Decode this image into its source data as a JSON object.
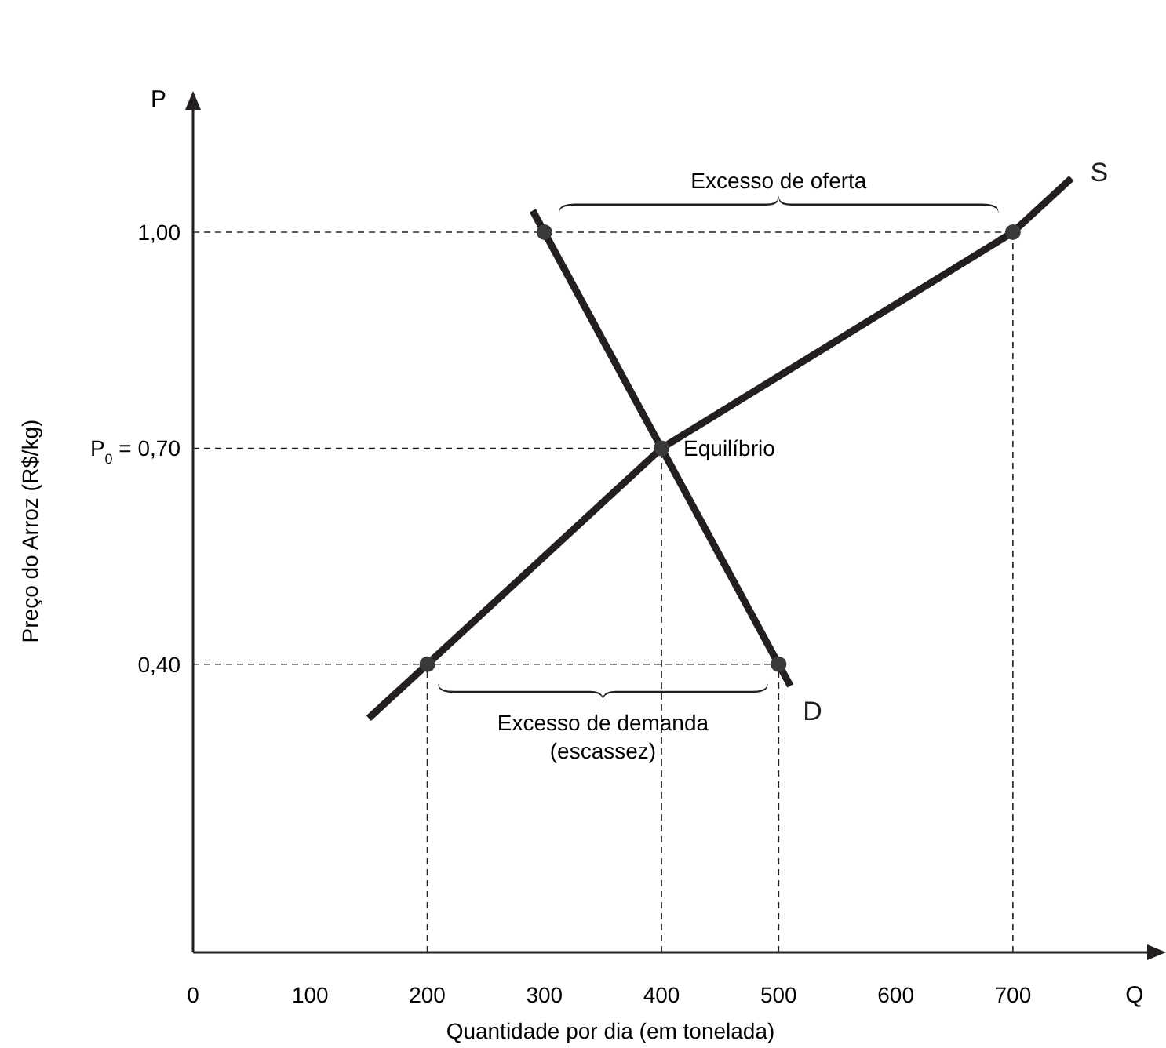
{
  "chart_data": {
    "type": "line",
    "xlabel": "Quantidade por dia (em tonelada)",
    "ylabel": "Preço do Arroz (R$/kg)",
    "xlim": [
      0,
      820
    ],
    "ylim": [
      0,
      1.17
    ],
    "xticks": [
      0,
      100,
      200,
      300,
      400,
      500,
      600,
      700
    ],
    "yticks": [
      {
        "value": 0.4,
        "label": "0,40"
      },
      {
        "value": 0.7,
        "label": "P$_{0}$ = 0,70"
      },
      {
        "value": 1,
        "label": "1,00"
      }
    ],
    "series": [
      {
        "name": "S",
        "color": "#231f20",
        "x": [
          150,
          200,
          400,
          700,
          750
        ],
        "values": [
          0.325,
          0.4,
          0.7,
          1,
          1.075
        ]
      },
      {
        "name": "D",
        "color": "#231f20",
        "x": [
          290,
          300,
          400,
          500,
          510
        ],
        "values": [
          1.03,
          1,
          0.7,
          0.4,
          0.37
        ]
      },
      {
        "type": "scatter",
        "color": "#3a3a3a",
        "marker": "circle",
        "x": [
          200,
          300,
          400,
          500,
          700
        ],
        "values": [
          0.4,
          1,
          0.7,
          0.4,
          1
        ]
      }
    ],
    "ref_lines": [
      {
        "axis": "y",
        "value": 1,
        "line_style": "dashed"
      },
      {
        "axis": "y",
        "value": 0.7,
        "label": "Equilíbrio",
        "line_style": "dashed"
      },
      {
        "axis": "y",
        "value": 0.4,
        "line_style": "dashed"
      },
      {
        "axis": "x",
        "value": 200,
        "line_style": "dashed"
      },
      {
        "axis": "x",
        "value": 400,
        "line_style": "dashed"
      },
      {
        "axis": "x",
        "value": 500,
        "line_style": "dashed"
      },
      {
        "axis": "x",
        "value": 700,
        "line_style": "dashed"
      }
    ],
    "annotations": [
      "P",
      "Q",
      {
        "text": "Excesso de oferta",
        "x": 500,
        "y": 1
      },
      {
        "text": "Excesso de demanda\n(escassez)",
        "x": 350,
        "y": 0.4
      }
    ],
    "grid": false,
    "legend": false
  }
}
